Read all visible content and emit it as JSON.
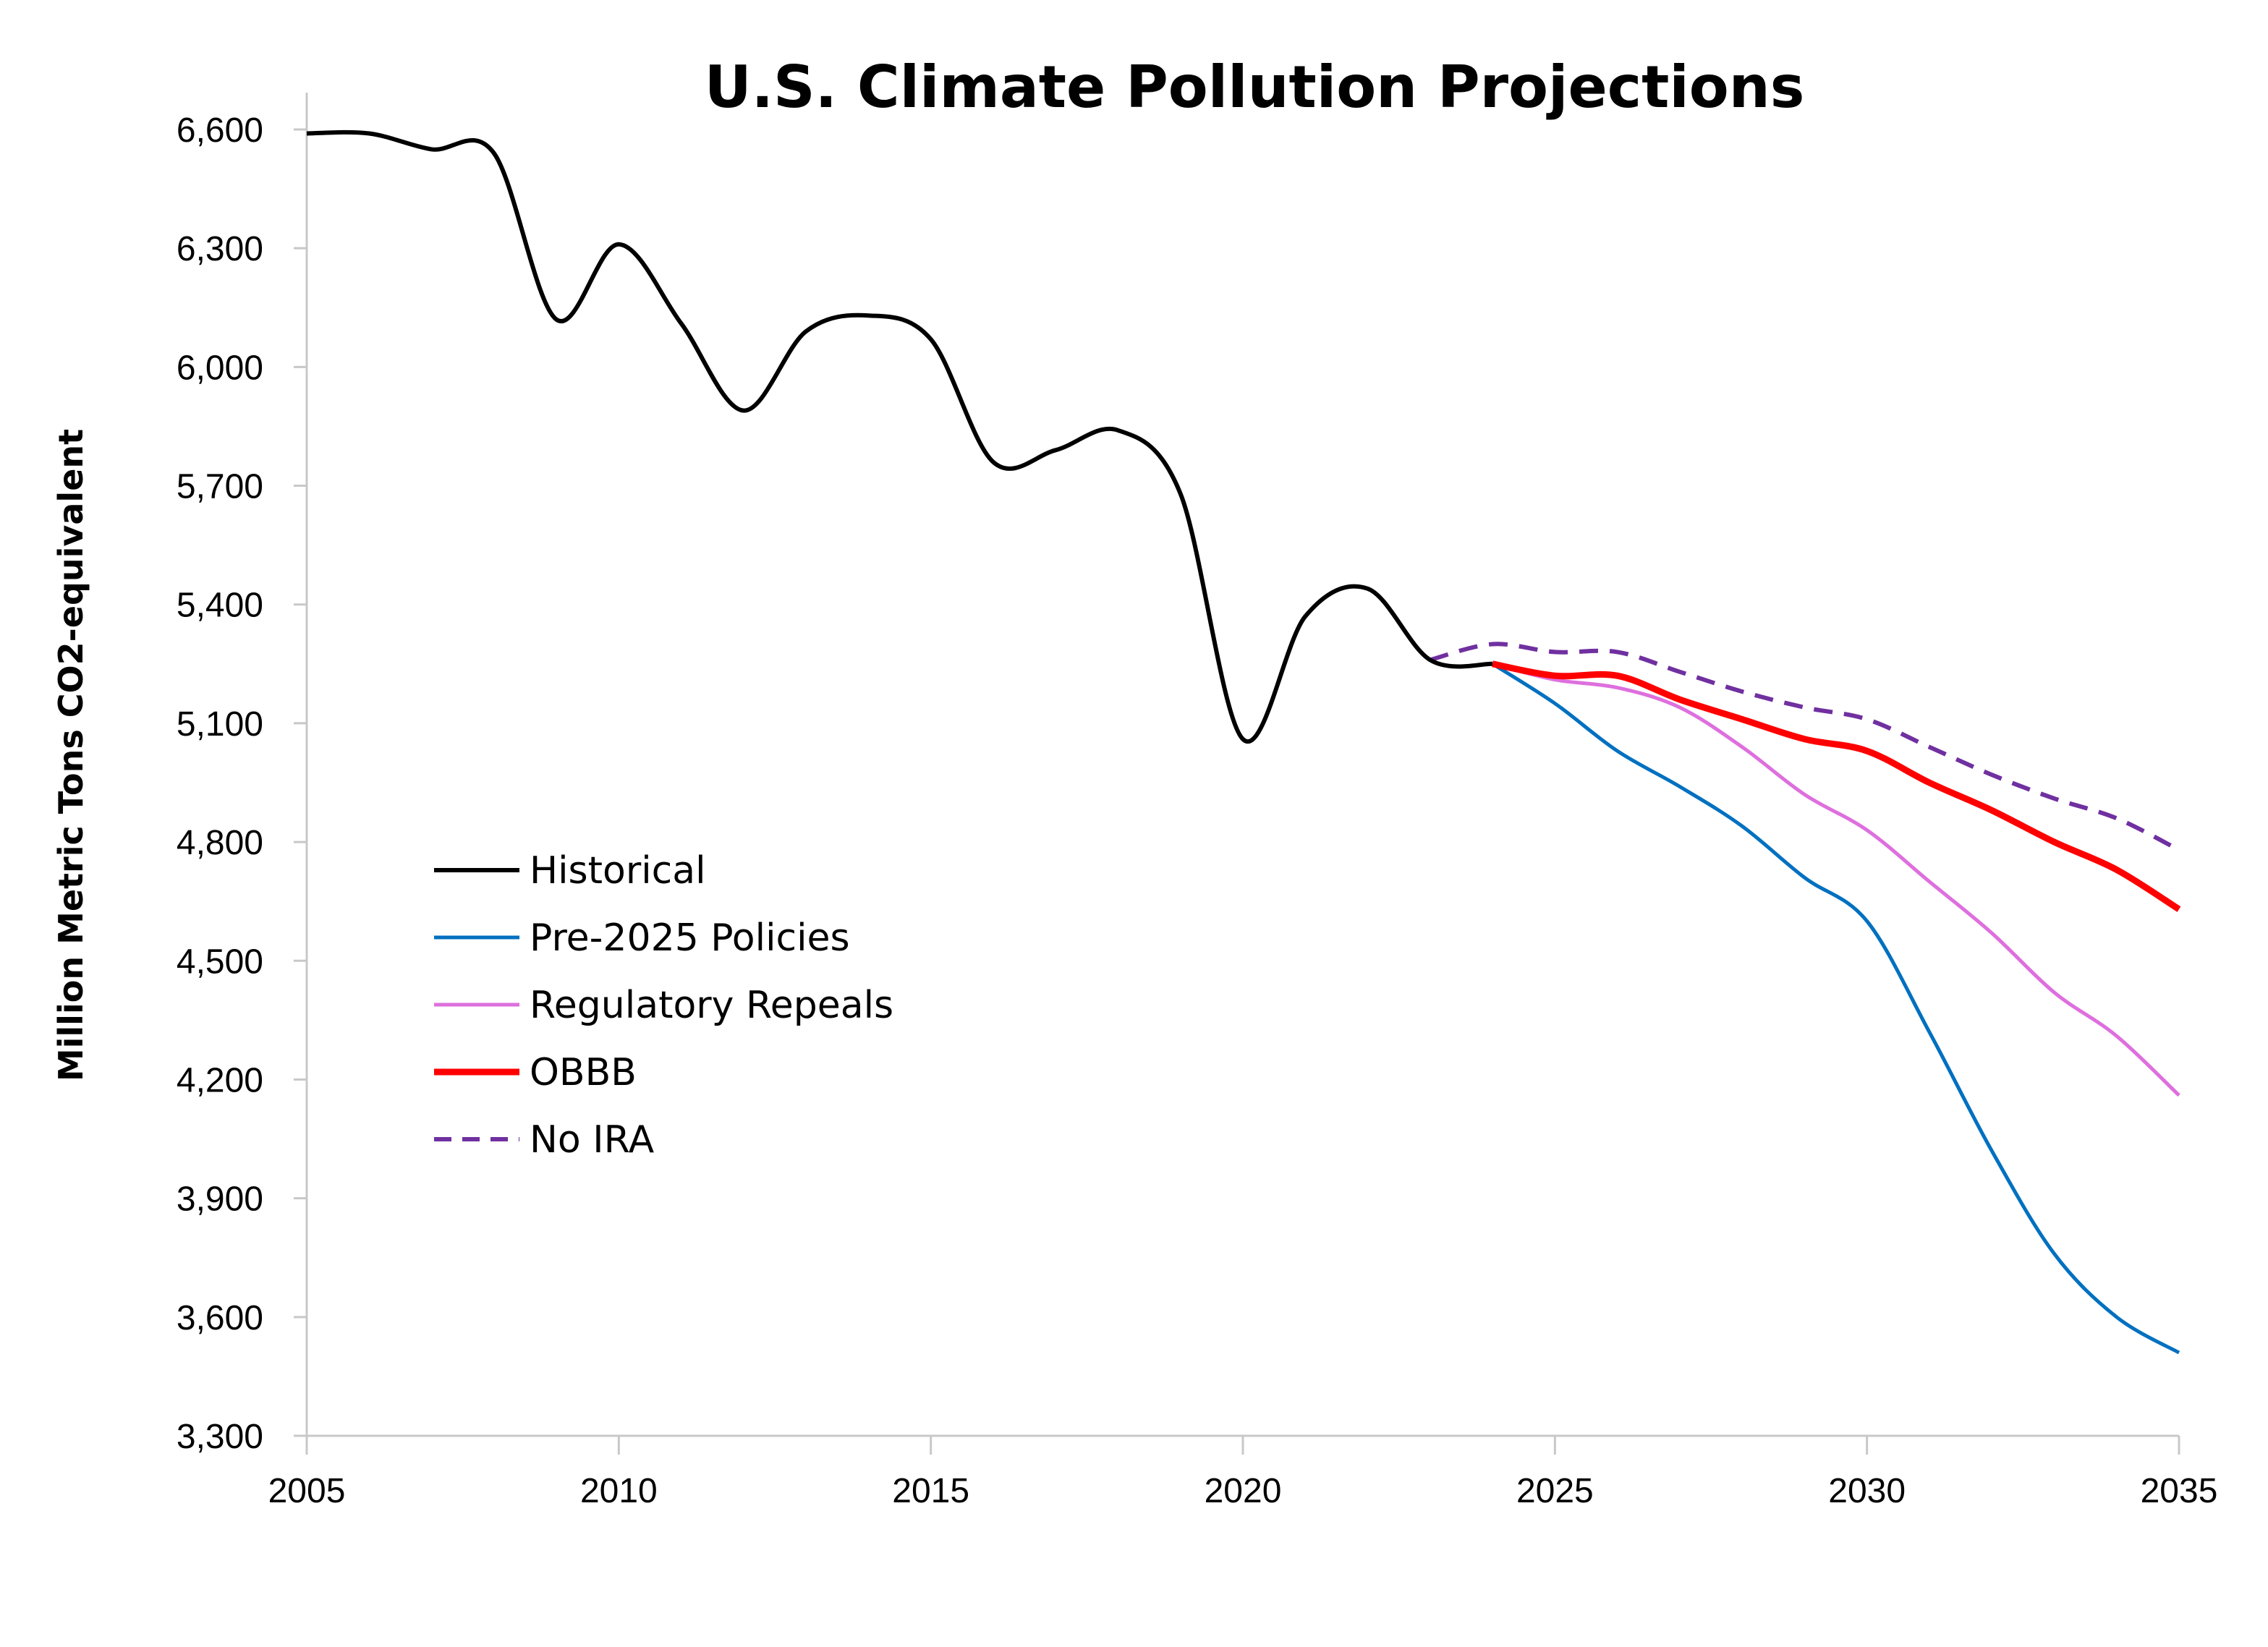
{
  "chart_data": {
    "type": "line",
    "title": "U.S. Climate Pollution Projections",
    "xlabel": "",
    "ylabel": "Million Metric Tons CO2-equivalent",
    "xlim": [
      2005,
      2035
    ],
    "ylim": [
      3300,
      6700
    ],
    "x_ticks": [
      "2005",
      "2010",
      "2015",
      "2020",
      "2025",
      "2030",
      "2035"
    ],
    "y_ticks": [
      "3,300",
      "3,600",
      "3,900",
      "4,200",
      "4,500",
      "4,800",
      "5,100",
      "5,400",
      "5,700",
      "6,000",
      "6,300",
      "6,600"
    ],
    "grid": false,
    "legend_position": "lower-left",
    "series": [
      {
        "name": "Historical",
        "color": "#000000",
        "style": "solid",
        "x": [
          2005,
          2006,
          2007,
          2008,
          2009,
          2010,
          2011,
          2012,
          2013,
          2014,
          2015,
          2016,
          2017,
          2018,
          2019,
          2020,
          2021,
          2022,
          2023,
          2024
        ],
        "y": [
          6590,
          6590,
          6550,
          6540,
          6120,
          6310,
          6110,
          5890,
          6090,
          6130,
          6070,
          5760,
          5790,
          5840,
          5680,
          5060,
          5370,
          5440,
          5260,
          5250
        ]
      },
      {
        "name": "Pre-2025 Policies",
        "color": "#0070c0",
        "style": "solid",
        "x": [
          2024,
          2025,
          2026,
          2027,
          2028,
          2029,
          2030,
          2031,
          2032,
          2033,
          2034,
          2035
        ],
        "y": [
          5250,
          5150,
          5030,
          4940,
          4840,
          4710,
          4600,
          4320,
          4020,
          3760,
          3600,
          3510
        ]
      },
      {
        "name": "Regulatory Repeals",
        "color": "#de6fde",
        "style": "solid",
        "x": [
          2024,
          2025,
          2026,
          2027,
          2028,
          2029,
          2030,
          2031,
          2032,
          2033,
          2034,
          2035
        ],
        "y": [
          5250,
          5210,
          5190,
          5140,
          5040,
          4920,
          4830,
          4700,
          4570,
          4420,
          4310,
          4160
        ]
      },
      {
        "name": "OBBB",
        "color": "#ff0000",
        "style": "solid",
        "x": [
          2024,
          2025,
          2026,
          2027,
          2028,
          2029,
          2030,
          2031,
          2032,
          2033,
          2034,
          2035
        ],
        "y": [
          5250,
          5220,
          5220,
          5160,
          5110,
          5060,
          5030,
          4950,
          4880,
          4800,
          4730,
          4630
        ]
      },
      {
        "name": "No IRA",
        "color": "#7030a0",
        "style": "dashed",
        "x": [
          2023,
          2024,
          2025,
          2026,
          2027,
          2028,
          2029,
          2030,
          2031,
          2032,
          2033,
          2034,
          2035
        ],
        "y": [
          5260,
          5300,
          5280,
          5280,
          5230,
          5180,
          5140,
          5110,
          5040,
          4970,
          4910,
          4860,
          4780
        ]
      }
    ]
  }
}
